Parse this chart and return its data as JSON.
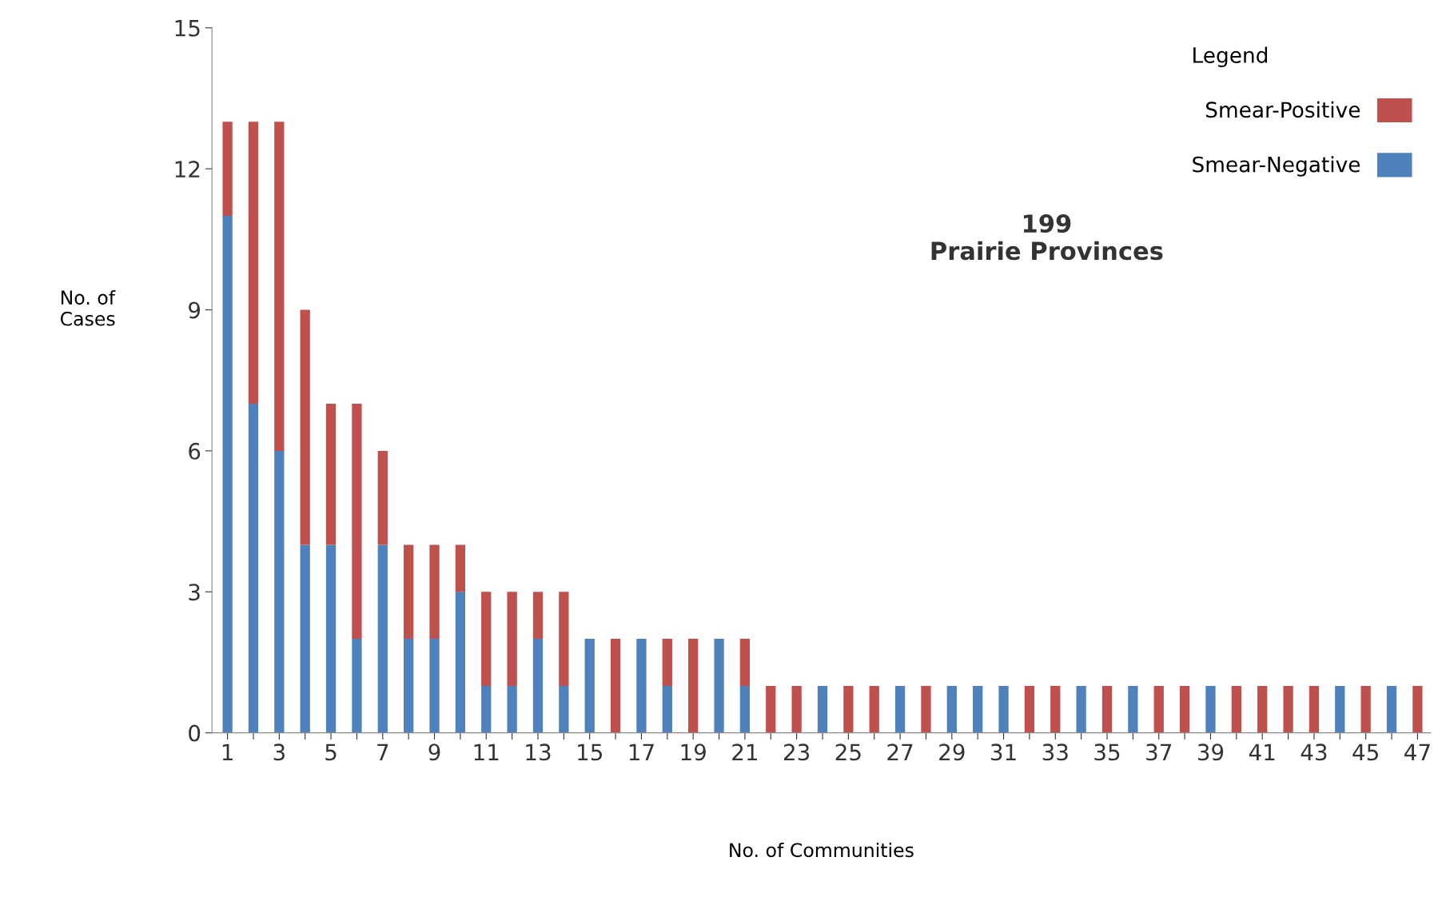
{
  "chart_data": {
    "type": "bar",
    "stacked": true,
    "categories": [
      "1",
      null,
      "3",
      null,
      "5",
      null,
      "7",
      null,
      "9",
      null,
      "11",
      null,
      "13",
      null,
      "15",
      null,
      "17",
      null,
      "19",
      null,
      "21",
      null,
      "23",
      null,
      "25",
      null,
      "27",
      null,
      "29",
      null,
      "31",
      null,
      "33",
      null,
      "35",
      null,
      "37",
      null,
      "39",
      null,
      "41",
      null,
      "43",
      null,
      "45",
      null,
      "47"
    ],
    "series": [
      {
        "name": "Smear-Negative",
        "color": "#4f81bd",
        "values": [
          11,
          7,
          6,
          4,
          4,
          2,
          4,
          2,
          2,
          3,
          1,
          1,
          2,
          1,
          2,
          0,
          2,
          1,
          0,
          2,
          1,
          0,
          0,
          1,
          0,
          0,
          1,
          0,
          1,
          1,
          1,
          0,
          0,
          1,
          0,
          1,
          0,
          0,
          1,
          0,
          0,
          0,
          0,
          1,
          0,
          1,
          0
        ]
      },
      {
        "name": "Smear-Positive",
        "color": "#c0504d",
        "values": [
          2,
          6,
          7,
          5,
          3,
          5,
          2,
          2,
          2,
          1,
          2,
          2,
          1,
          2,
          0,
          2,
          0,
          1,
          2,
          0,
          1,
          1,
          1,
          0,
          1,
          1,
          0,
          1,
          0,
          0,
          0,
          1,
          1,
          0,
          1,
          0,
          1,
          1,
          0,
          1,
          1,
          1,
          1,
          0,
          1,
          0,
          1
        ]
      }
    ],
    "ylim": [
      0,
      15
    ],
    "yticks": [
      0,
      3,
      6,
      9,
      12,
      15
    ],
    "xlabel": "No. of Communities",
    "ylabel": "No. of\nCases",
    "legend_title": "Legend",
    "legend": "top right",
    "grid": false,
    "annotations": [
      "199\nPrairie Provinces"
    ]
  }
}
